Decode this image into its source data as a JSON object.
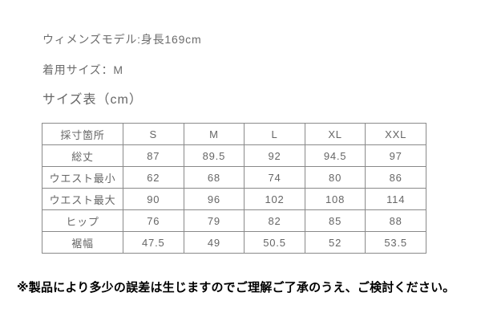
{
  "page": {
    "model_info": "ウィメンズモデル:身長169cm",
    "wearing_size": "着用サイズ：M",
    "table_title": "サイズ表（cm）",
    "note": "※製品により多少の誤差は生じますのでご理解ご了承のうえ、ご検討ください。"
  },
  "size_table": {
    "columns": [
      "採寸箇所",
      "S",
      "M",
      "L",
      "XL",
      "XXL"
    ],
    "rows": [
      {
        "label": "総丈",
        "values": [
          "87",
          "89.5",
          "92",
          "94.5",
          "97"
        ]
      },
      {
        "label": "ウエスト最小",
        "values": [
          "62",
          "68",
          "74",
          "80",
          "86"
        ]
      },
      {
        "label": "ウエスト最大",
        "values": [
          "90",
          "96",
          "102",
          "108",
          "114"
        ]
      },
      {
        "label": "ヒップ",
        "values": [
          "76",
          "79",
          "82",
          "85",
          "88"
        ]
      },
      {
        "label": "裾幅",
        "values": [
          "47.5",
          "49",
          "50.5",
          "52",
          "53.5"
        ]
      }
    ]
  },
  "colors": {
    "background": "#ffffff",
    "body_text": "#6b6b6b",
    "table_text": "#666666",
    "table_border": "#8a8a8a",
    "note_text": "#000000"
  }
}
